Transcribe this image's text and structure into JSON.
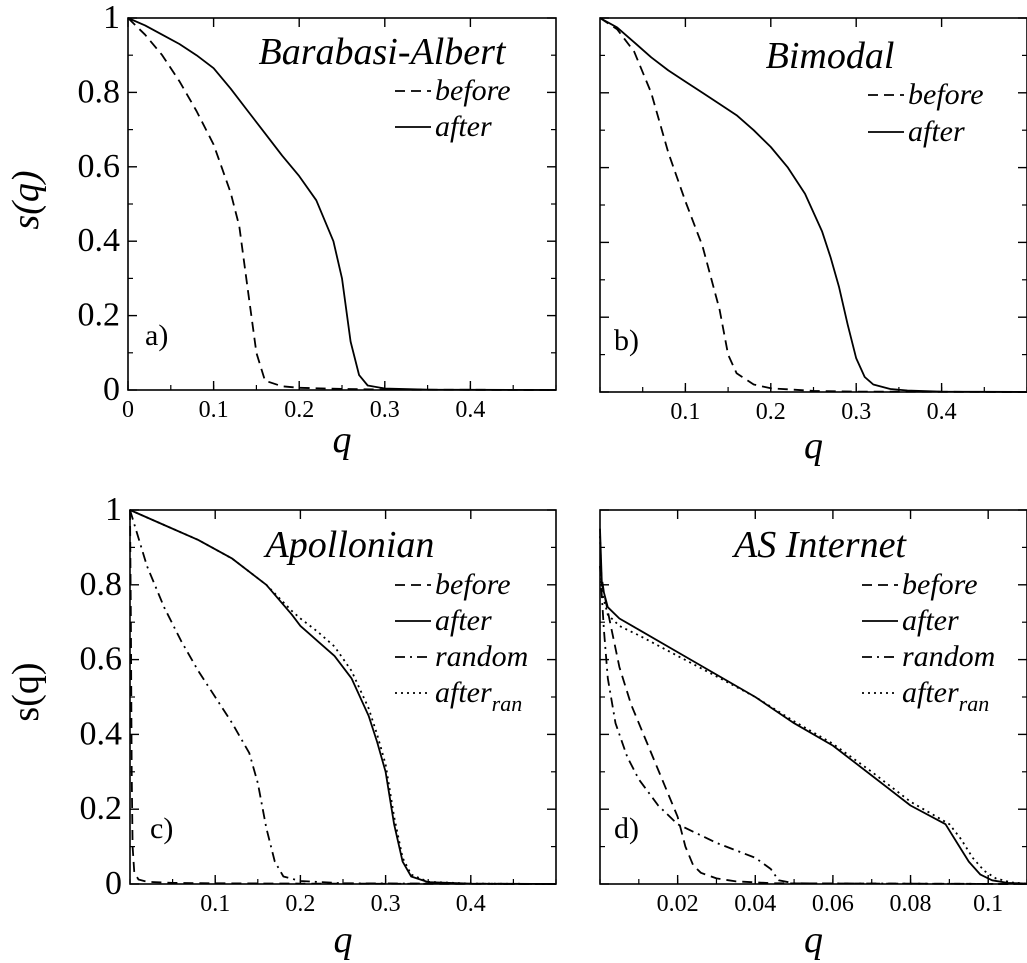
{
  "chart_data": [
    {
      "panel": "a)",
      "type": "line",
      "title": "Barabasi-Albert",
      "xlabel": "q",
      "ylabel": "s(q)",
      "ylabel_style": "italic",
      "xlim": [
        0,
        0.5
      ],
      "ylim": [
        0,
        1
      ],
      "x_ticks": [
        0,
        0.1,
        0.2,
        0.3,
        0.4
      ],
      "x_tick_labels": [
        "0",
        "0.1",
        "0.2",
        "0.3",
        "0.4"
      ],
      "y_ticks": [
        0,
        0.2,
        0.4,
        0.6,
        0.8,
        1
      ],
      "y_tick_labels": [
        "0",
        "0.2",
        "0.4",
        "0.6",
        "0.8",
        "1"
      ],
      "legend_placement": "top-right",
      "series": [
        {
          "name": "before",
          "style": "dashed",
          "x": [
            0,
            0.02,
            0.04,
            0.06,
            0.08,
            0.1,
            0.12,
            0.13,
            0.14,
            0.15,
            0.16,
            0.18,
            0.2,
            0.25,
            0.3,
            0.5
          ],
          "y": [
            1,
            0.955,
            0.9,
            0.83,
            0.75,
            0.66,
            0.53,
            0.44,
            0.27,
            0.1,
            0.025,
            0.01,
            0.006,
            0.003,
            0.001,
            0.0
          ]
        },
        {
          "name": "after",
          "style": "solid",
          "x": [
            0,
            0.02,
            0.04,
            0.06,
            0.08,
            0.1,
            0.12,
            0.14,
            0.16,
            0.18,
            0.2,
            0.22,
            0.24,
            0.25,
            0.26,
            0.27,
            0.28,
            0.3,
            0.35,
            0.5
          ],
          "y": [
            1,
            0.98,
            0.955,
            0.93,
            0.9,
            0.865,
            0.81,
            0.75,
            0.69,
            0.63,
            0.575,
            0.51,
            0.4,
            0.3,
            0.13,
            0.04,
            0.012,
            0.004,
            0.001,
            0.0
          ]
        }
      ]
    },
    {
      "panel": "b)",
      "type": "line",
      "title": "Bimodal",
      "xlabel": "q",
      "ylabel": "",
      "xlim": [
        0,
        0.5
      ],
      "ylim": [
        0,
        1
      ],
      "x_ticks": [
        0.1,
        0.2,
        0.3,
        0.4
      ],
      "x_tick_labels": [
        "0.1",
        "0.2",
        "0.3",
        "0.4"
      ],
      "y_ticks": [
        0,
        0.2,
        0.4,
        0.6,
        0.8,
        1
      ],
      "y_tick_labels": [],
      "legend_placement": "top-right",
      "series": [
        {
          "name": "before",
          "style": "dashed",
          "x": [
            0,
            0.02,
            0.04,
            0.06,
            0.08,
            0.1,
            0.12,
            0.14,
            0.15,
            0.16,
            0.18,
            0.2,
            0.25,
            0.3,
            0.5
          ],
          "y": [
            1,
            0.97,
            0.91,
            0.8,
            0.64,
            0.51,
            0.39,
            0.22,
            0.1,
            0.05,
            0.02,
            0.01,
            0.003,
            0.001,
            0.0
          ]
        },
        {
          "name": "after",
          "style": "solid",
          "x": [
            0,
            0.02,
            0.04,
            0.06,
            0.08,
            0.1,
            0.12,
            0.14,
            0.16,
            0.18,
            0.2,
            0.22,
            0.24,
            0.26,
            0.27,
            0.28,
            0.29,
            0.3,
            0.31,
            0.32,
            0.34,
            0.36,
            0.4,
            0.5
          ],
          "y": [
            1,
            0.975,
            0.935,
            0.895,
            0.86,
            0.83,
            0.8,
            0.77,
            0.74,
            0.7,
            0.655,
            0.6,
            0.53,
            0.43,
            0.36,
            0.28,
            0.18,
            0.09,
            0.04,
            0.02,
            0.008,
            0.004,
            0.001,
            0.0
          ]
        }
      ]
    },
    {
      "panel": "c)",
      "type": "line",
      "title": "Apollonian",
      "xlabel": "q",
      "ylabel": "s(q)",
      "ylabel_style": "upright",
      "xlim": [
        0,
        0.5
      ],
      "ylim": [
        0,
        1
      ],
      "x_ticks": [
        0.1,
        0.2,
        0.3,
        0.4
      ],
      "x_tick_labels": [
        "0.1",
        "0.2",
        "0.3",
        "0.4"
      ],
      "y_ticks": [
        0,
        0.2,
        0.4,
        0.6,
        0.8,
        1
      ],
      "y_tick_labels": [
        "0",
        "0.2",
        "0.4",
        "0.6",
        "0.8",
        "1"
      ],
      "legend_placement": "top-right",
      "series": [
        {
          "name": "before",
          "style": "dashed",
          "x": [
            0,
            0.001,
            0.002,
            0.003,
            0.005,
            0.01,
            0.02,
            0.05,
            0.1,
            0.2,
            0.5
          ],
          "y": [
            1,
            0.7,
            0.3,
            0.1,
            0.03,
            0.012,
            0.006,
            0.003,
            0.002,
            0.001,
            0.0
          ]
        },
        {
          "name": "after",
          "style": "solid",
          "x": [
            0,
            0.04,
            0.08,
            0.12,
            0.16,
            0.19,
            0.2,
            0.22,
            0.24,
            0.26,
            0.28,
            0.29,
            0.3,
            0.31,
            0.32,
            0.33,
            0.35,
            0.4,
            0.5
          ],
          "y": [
            1,
            0.96,
            0.92,
            0.87,
            0.8,
            0.72,
            0.69,
            0.65,
            0.61,
            0.55,
            0.45,
            0.38,
            0.3,
            0.16,
            0.06,
            0.02,
            0.005,
            0.001,
            0.0
          ]
        },
        {
          "name": "random",
          "style": "dashdot",
          "x": [
            0,
            0.02,
            0.04,
            0.06,
            0.08,
            0.1,
            0.12,
            0.14,
            0.15,
            0.16,
            0.17,
            0.18,
            0.2,
            0.25,
            0.5
          ],
          "y": [
            1,
            0.85,
            0.74,
            0.65,
            0.57,
            0.5,
            0.43,
            0.35,
            0.27,
            0.15,
            0.06,
            0.02,
            0.008,
            0.002,
            0.0
          ]
        },
        {
          "name": "after_ran",
          "style": "dotted",
          "x": [
            0,
            0.04,
            0.08,
            0.12,
            0.16,
            0.19,
            0.2,
            0.22,
            0.24,
            0.26,
            0.28,
            0.29,
            0.3,
            0.31,
            0.32,
            0.33,
            0.35,
            0.4,
            0.5
          ],
          "y": [
            1,
            0.96,
            0.92,
            0.87,
            0.8,
            0.73,
            0.71,
            0.675,
            0.635,
            0.57,
            0.47,
            0.4,
            0.32,
            0.18,
            0.07,
            0.025,
            0.006,
            0.001,
            0.0
          ]
        }
      ]
    },
    {
      "panel": "d)",
      "type": "line",
      "title": "AS Internet",
      "xlabel": "q",
      "ylabel": "",
      "xlim": [
        0,
        0.11
      ],
      "ylim": [
        0,
        1
      ],
      "x_ticks": [
        0.02,
        0.04,
        0.06,
        0.08,
        0.1
      ],
      "x_tick_labels": [
        "0.02",
        "0.04",
        "0.06",
        "0.08",
        "0.1"
      ],
      "y_ticks": [
        0,
        0.2,
        0.4,
        0.6,
        0.8,
        1
      ],
      "y_tick_labels": [],
      "legend_placement": "top-right",
      "series": [
        {
          "name": "before",
          "style": "dashed",
          "x": [
            0,
            0.001,
            0.003,
            0.005,
            0.008,
            0.012,
            0.016,
            0.02,
            0.022,
            0.024,
            0.026,
            0.03,
            0.035,
            0.045,
            0.11
          ],
          "y": [
            0.85,
            0.78,
            0.68,
            0.58,
            0.48,
            0.38,
            0.28,
            0.18,
            0.1,
            0.05,
            0.03,
            0.015,
            0.007,
            0.002,
            0.0
          ]
        },
        {
          "name": "after",
          "style": "solid",
          "x": [
            0,
            0.0005,
            0.002,
            0.005,
            0.01,
            0.02,
            0.03,
            0.04,
            0.05,
            0.06,
            0.07,
            0.08,
            0.089,
            0.092,
            0.095,
            0.098,
            0.101,
            0.105,
            0.11
          ],
          "y": [
            0.95,
            0.8,
            0.74,
            0.71,
            0.68,
            0.62,
            0.56,
            0.5,
            0.43,
            0.37,
            0.29,
            0.21,
            0.16,
            0.11,
            0.06,
            0.025,
            0.01,
            0.003,
            0.001
          ]
        },
        {
          "name": "random",
          "style": "dashdot",
          "x": [
            0,
            0.001,
            0.002,
            0.004,
            0.007,
            0.01,
            0.015,
            0.02,
            0.03,
            0.04,
            0.044,
            0.046,
            0.05,
            0.11
          ],
          "y": [
            0.85,
            0.68,
            0.55,
            0.43,
            0.34,
            0.28,
            0.21,
            0.16,
            0.11,
            0.07,
            0.04,
            0.01,
            0.002,
            0.0
          ]
        },
        {
          "name": "after_ran",
          "style": "dotted",
          "x": [
            0,
            0.0005,
            0.002,
            0.005,
            0.01,
            0.02,
            0.03,
            0.04,
            0.05,
            0.06,
            0.07,
            0.08,
            0.09,
            0.093,
            0.096,
            0.099,
            0.102,
            0.106,
            0.11
          ],
          "y": [
            0.93,
            0.78,
            0.72,
            0.69,
            0.665,
            0.61,
            0.555,
            0.5,
            0.435,
            0.375,
            0.3,
            0.22,
            0.16,
            0.12,
            0.07,
            0.035,
            0.015,
            0.004,
            0.001
          ]
        }
      ]
    }
  ]
}
